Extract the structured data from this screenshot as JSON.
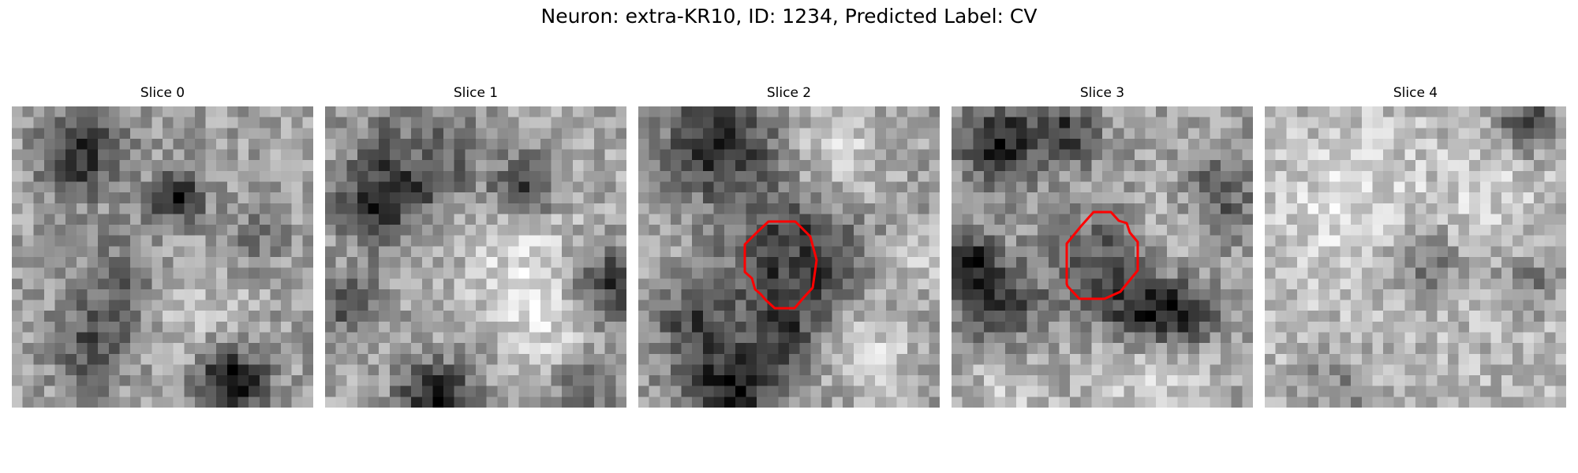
{
  "figure": {
    "title": "Neuron: extra-KR10, ID: 1234, Predicted Label: CV"
  },
  "panels": [
    {
      "title": "Slice 0",
      "has_contour": false
    },
    {
      "title": "Slice 1",
      "has_contour": false
    },
    {
      "title": "Slice 2",
      "has_contour": true
    },
    {
      "title": "Slice 3",
      "has_contour": true
    },
    {
      "title": "Slice 4",
      "has_contour": false
    }
  ],
  "colors": {
    "contour": "#ff0000",
    "colormap": "gray"
  }
}
